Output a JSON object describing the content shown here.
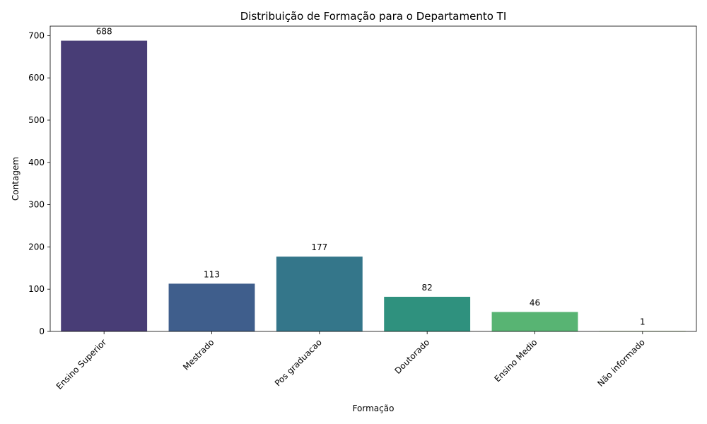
{
  "chart_data": {
    "type": "bar",
    "title": "Distribuição de Formação para o Departamento TI",
    "xlabel": "Formação",
    "ylabel": "Contagem",
    "categories": [
      "Ensino Superior",
      "Mestrado",
      "Pos graduacao",
      "Doutorado",
      "Ensino Medio",
      "Não informado"
    ],
    "values": [
      688,
      113,
      177,
      82,
      46,
      1
    ],
    "data_labels": [
      "688",
      "113",
      "177",
      "82",
      "46",
      "1"
    ],
    "colors": [
      "#483d76",
      "#3f5e8c",
      "#34768a",
      "#2f917e",
      "#58b473",
      "#8fd14f"
    ],
    "ylim": [
      0,
      722.4
    ],
    "yticks": [
      0,
      100,
      200,
      300,
      400,
      500,
      600,
      700
    ],
    "ytick_labels": [
      "0",
      "100",
      "200",
      "300",
      "400",
      "500",
      "600",
      "700"
    ],
    "grid": false,
    "legend": "none"
  }
}
